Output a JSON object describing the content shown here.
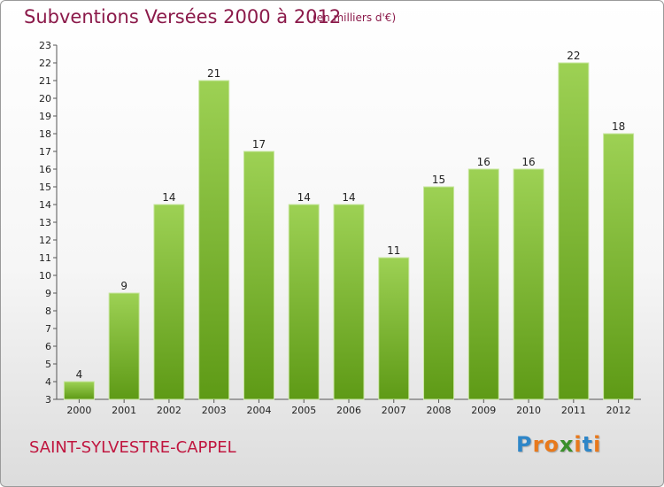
{
  "title": "Subventions Versées 2000 à 2012",
  "unit_note": "(en milliers d'€)",
  "commune": "SAINT-SYLVESTRE-CAPPEL",
  "logo": {
    "text": "Proxiti",
    "letters": [
      {
        "ch": "P",
        "color": "#2e86c8"
      },
      {
        "ch": "r",
        "color": "#e8791c"
      },
      {
        "ch": "o",
        "color": "#e8791c"
      },
      {
        "ch": "x",
        "color": "#3a8f2a"
      },
      {
        "ch": "i",
        "color": "#e8791c"
      },
      {
        "ch": "t",
        "color": "#2e86c8"
      },
      {
        "ch": "i",
        "color": "#e8791c"
      }
    ]
  },
  "colors": {
    "bar_top": "#9dd154",
    "bar_bottom": "#5e9a16",
    "title": "#8b1a4a",
    "commune": "#c0163f"
  },
  "chart_data": {
    "type": "bar",
    "title": "Subventions Versées 2000 à 2012",
    "subtitle": "(en milliers d'€)",
    "xlabel": "",
    "ylabel": "",
    "categories": [
      "2000",
      "2001",
      "2002",
      "2003",
      "2004",
      "2005",
      "2006",
      "2007",
      "2008",
      "2009",
      "2010",
      "2011",
      "2012"
    ],
    "values": [
      4,
      9,
      14,
      21,
      17,
      14,
      14,
      11,
      15,
      16,
      16,
      22,
      18
    ],
    "ylim": [
      3,
      23
    ],
    "yticks": [
      3,
      4,
      5,
      6,
      7,
      8,
      9,
      10,
      11,
      12,
      13,
      14,
      15,
      16,
      17,
      18,
      19,
      20,
      21,
      22,
      23
    ],
    "grid": false,
    "legend": "none"
  }
}
